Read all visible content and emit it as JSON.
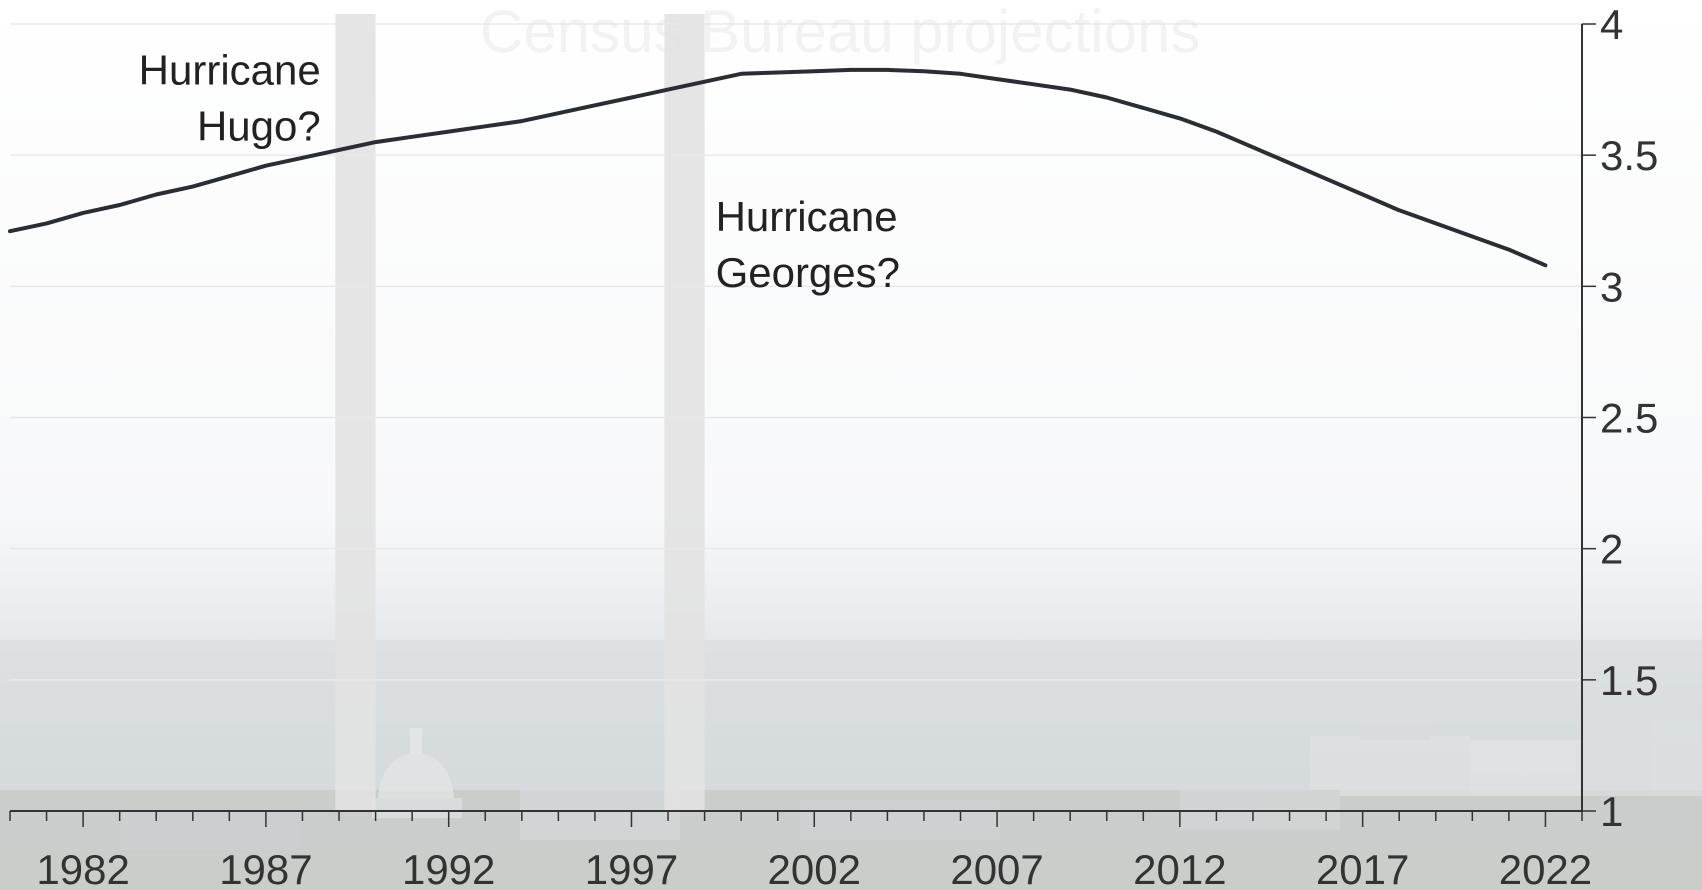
{
  "chart_data": {
    "type": "line",
    "title": "",
    "watermark_text": "Census Bureau projections",
    "xlabel": "",
    "ylabel": "",
    "xlim": [
      1980,
      2023
    ],
    "ylim": [
      1,
      4
    ],
    "x_ticks": [
      1982,
      1987,
      1992,
      1997,
      2002,
      2007,
      2012,
      2017,
      2022
    ],
    "y_ticks": [
      1,
      1.5,
      2,
      2.5,
      3,
      3.5,
      4
    ],
    "y_tick_labels": [
      "1",
      "1.5",
      "2",
      "2.5",
      "3",
      "3.5",
      "4"
    ],
    "y_axis_position": "right",
    "grid": true,
    "series": [
      {
        "name": "",
        "color": "#2a2d33",
        "x": [
          1980,
          1981,
          1982,
          1983,
          1984,
          1985,
          1986,
          1987,
          1988,
          1989,
          1990,
          1991,
          1992,
          1993,
          1994,
          1995,
          1996,
          1997,
          1998,
          1999,
          2000,
          2001,
          2002,
          2003,
          2004,
          2005,
          2006,
          2007,
          2008,
          2009,
          2010,
          2011,
          2012,
          2013,
          2014,
          2015,
          2016,
          2017,
          2018,
          2019,
          2020,
          2021,
          2022
        ],
        "values": [
          3.21,
          3.24,
          3.28,
          3.31,
          3.35,
          3.38,
          3.42,
          3.46,
          3.49,
          3.52,
          3.55,
          3.57,
          3.59,
          3.61,
          3.63,
          3.66,
          3.69,
          3.72,
          3.75,
          3.78,
          3.81,
          3.815,
          3.82,
          3.825,
          3.825,
          3.82,
          3.81,
          3.79,
          3.77,
          3.75,
          3.72,
          3.68,
          3.64,
          3.59,
          3.53,
          3.47,
          3.41,
          3.35,
          3.29,
          3.24,
          3.19,
          3.14,
          3.08
        ]
      }
    ],
    "shaded_periods": [
      {
        "start": 1988.9,
        "end": 1990.0,
        "color": "#e2e2e2"
      },
      {
        "start": 1997.9,
        "end": 1999.0,
        "color": "#e2e2e2"
      }
    ],
    "annotations": [
      {
        "lines": [
          "Hurricane",
          "Hugo?"
        ],
        "anchor_x": 1988.5,
        "anchor_y": 3.77,
        "align": "end"
      },
      {
        "lines": [
          "Hurricane",
          "Georges?"
        ],
        "anchor_x": 1999.3,
        "anchor_y": 3.21,
        "align": "start"
      }
    ]
  }
}
